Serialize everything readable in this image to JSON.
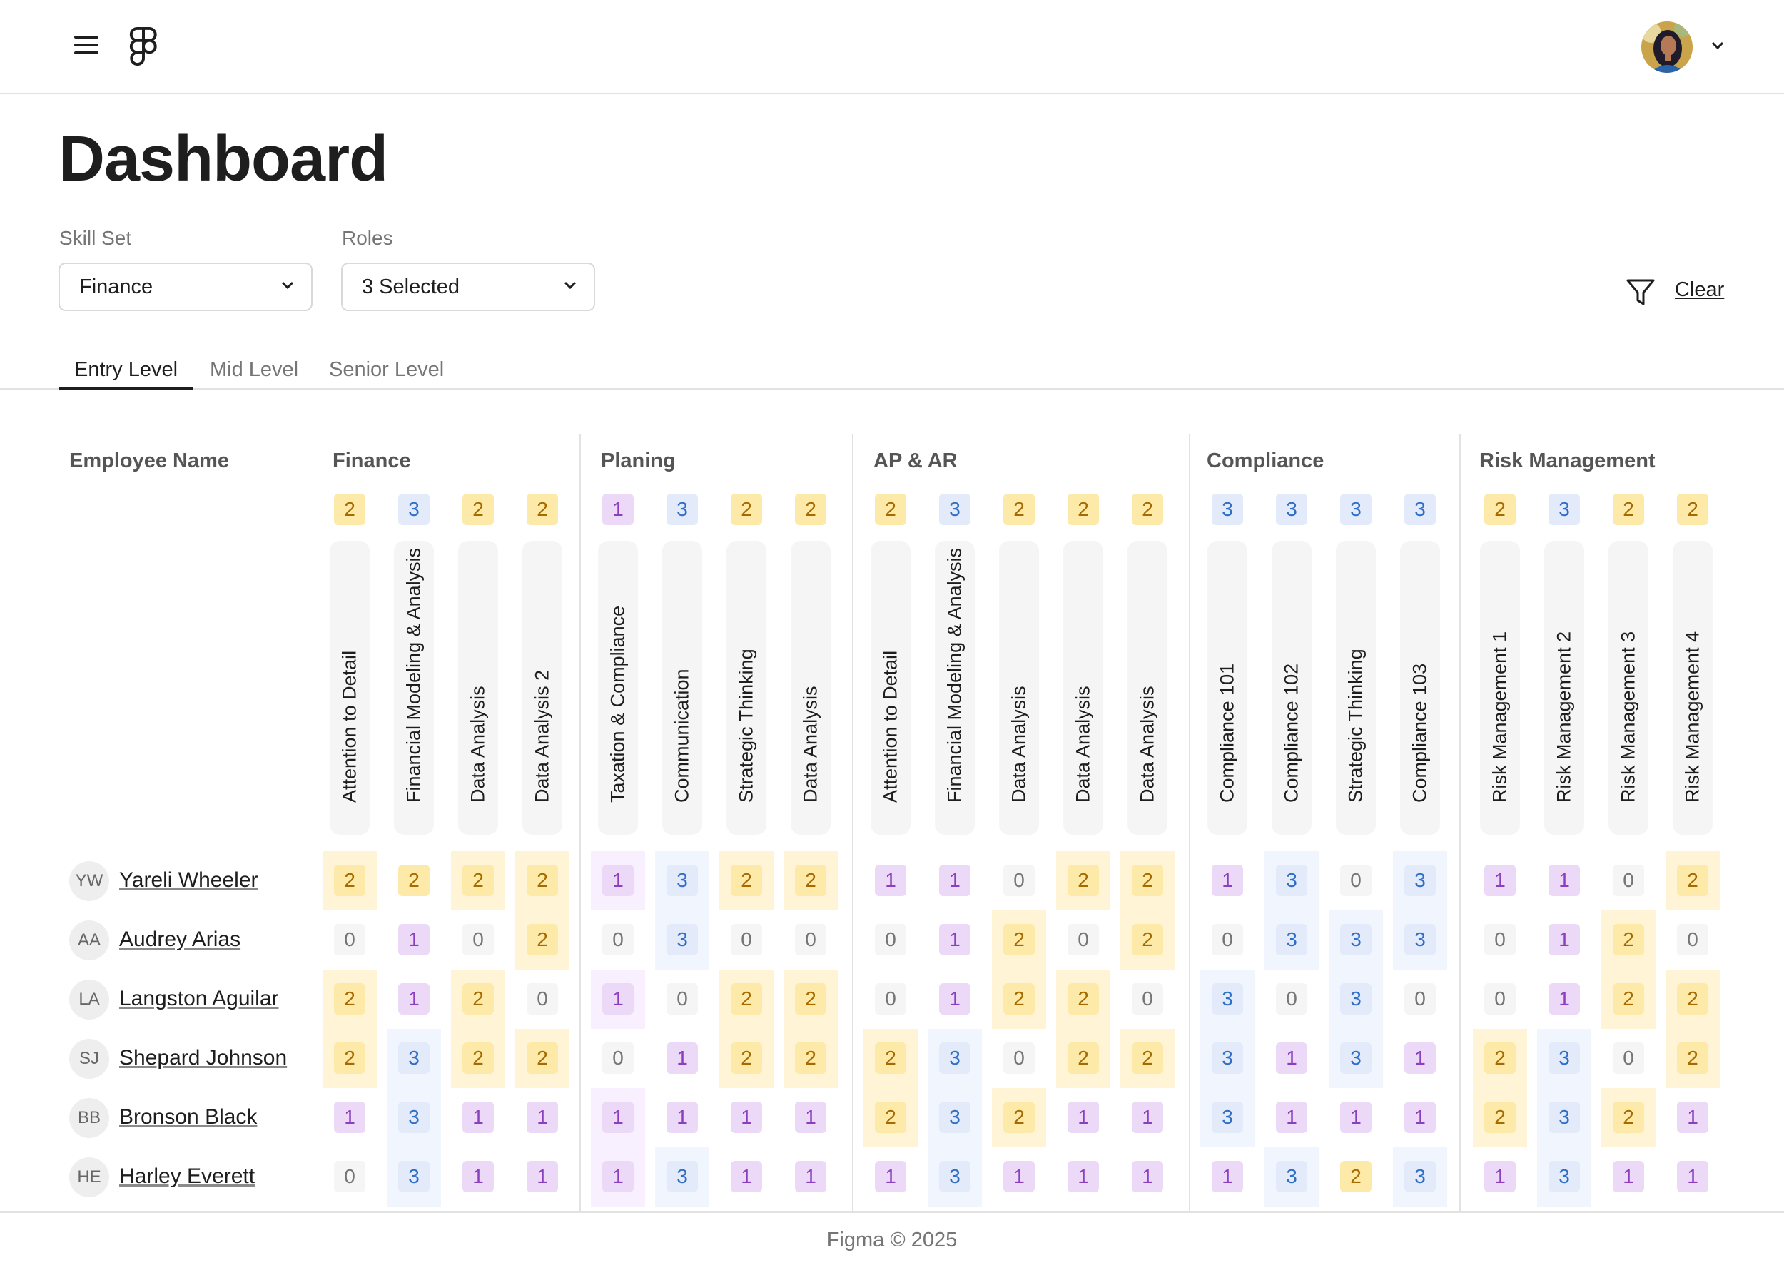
{
  "header": {
    "menu_icon": "hamburger-icon",
    "logo": "figma-logo",
    "user_menu_icon": "chevron-down-icon"
  },
  "page_title": "Dashboard",
  "filters": {
    "skill_set": {
      "label": "Skill Set",
      "value": "Finance"
    },
    "roles": {
      "label": "Roles",
      "value": "3 Selected"
    },
    "filter_icon": "filter-icon",
    "clear_label": "Clear"
  },
  "tabs": [
    {
      "label": "Entry Level",
      "active": true
    },
    {
      "label": "Mid Level",
      "active": false
    },
    {
      "label": "Senior Level",
      "active": false
    }
  ],
  "table": {
    "employee_header": "Employee Name",
    "groups": [
      {
        "title": "Finance",
        "skills": [
          {
            "name": "Attention to Detail",
            "level": 2
          },
          {
            "name": "Financial Modeling & Analysis",
            "level": 3
          },
          {
            "name": "Data Analysis",
            "level": 2
          },
          {
            "name": "Data Analysis 2",
            "level": 2
          }
        ]
      },
      {
        "title": "Planing",
        "skills": [
          {
            "name": "Taxation & Compliance",
            "level": 1
          },
          {
            "name": "Communication",
            "level": 3
          },
          {
            "name": "Strategic Thinking",
            "level": 2
          },
          {
            "name": "Data Analysis",
            "level": 2
          }
        ]
      },
      {
        "title": "AP & AR",
        "skills": [
          {
            "name": "Attention to Detail",
            "level": 2
          },
          {
            "name": "Financial Modeling & Analysis",
            "level": 3
          },
          {
            "name": "Data Analysis",
            "level": 2
          },
          {
            "name": "Data Analysis",
            "level": 2
          },
          {
            "name": "Data Analysis",
            "level": 2
          }
        ]
      },
      {
        "title": "Compliance",
        "skills": [
          {
            "name": "Compliance 101",
            "level": 3
          },
          {
            "name": "Compliance 102",
            "level": 3
          },
          {
            "name": "Strategic Thinking",
            "level": 3
          },
          {
            "name": "Compliance 103",
            "level": 3
          }
        ]
      },
      {
        "title": "Risk Management",
        "skills": [
          {
            "name": "Risk Management 1",
            "level": 2
          },
          {
            "name": "Risk Management 2",
            "level": 3
          },
          {
            "name": "Risk Management 3",
            "level": 2
          },
          {
            "name": "Risk Management 4",
            "level": 2
          }
        ]
      }
    ],
    "employees": [
      {
        "initials": "YW",
        "name": "Yareli Wheeler",
        "scores": [
          2,
          2,
          2,
          2,
          1,
          3,
          2,
          2,
          1,
          1,
          0,
          2,
          2,
          1,
          3,
          0,
          3,
          1,
          1,
          0,
          2
        ]
      },
      {
        "initials": "AA",
        "name": "Audrey Arias",
        "scores": [
          0,
          1,
          0,
          2,
          0,
          3,
          0,
          0,
          0,
          1,
          2,
          0,
          2,
          0,
          3,
          3,
          3,
          0,
          1,
          2,
          0
        ]
      },
      {
        "initials": "LA",
        "name": "Langston Aguilar",
        "scores": [
          2,
          1,
          2,
          0,
          1,
          0,
          2,
          2,
          0,
          1,
          2,
          2,
          0,
          3,
          0,
          3,
          0,
          0,
          1,
          2,
          2
        ]
      },
      {
        "initials": "SJ",
        "name": "Shepard Johnson",
        "scores": [
          2,
          3,
          2,
          2,
          0,
          1,
          2,
          2,
          2,
          3,
          0,
          2,
          2,
          3,
          1,
          3,
          1,
          2,
          3,
          0,
          2
        ]
      },
      {
        "initials": "BB",
        "name": "Bronson Black",
        "scores": [
          1,
          3,
          1,
          1,
          1,
          1,
          1,
          1,
          2,
          3,
          2,
          1,
          1,
          3,
          1,
          1,
          1,
          2,
          3,
          2,
          1
        ]
      },
      {
        "initials": "HE",
        "name": "Harley Everett",
        "scores": [
          0,
          3,
          1,
          1,
          1,
          3,
          1,
          1,
          1,
          3,
          1,
          1,
          1,
          1,
          3,
          2,
          3,
          1,
          3,
          1,
          1
        ]
      }
    ]
  },
  "footer": "Figma © 2025"
}
